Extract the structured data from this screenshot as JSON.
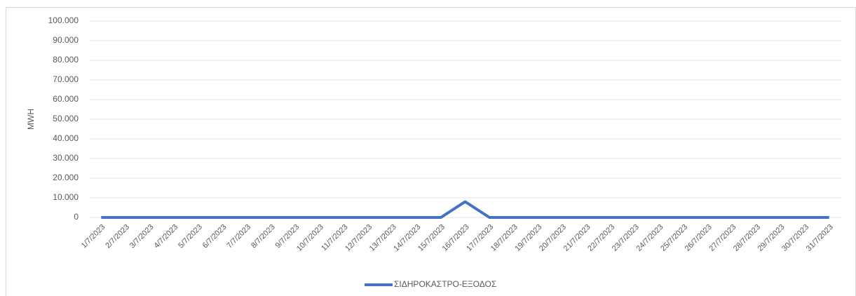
{
  "chart_data": {
    "type": "line",
    "y_label": "MWH",
    "categories": [
      "1/7/2023",
      "2/7/2023",
      "3/7/2023",
      "4/7/2023",
      "5/7/2023",
      "6/7/2023",
      "7/7/2023",
      "8/7/2023",
      "9/7/2023",
      "10/7/2023",
      "11/7/2023",
      "12/7/2023",
      "13/7/2023",
      "14/7/2023",
      "15/7/2023",
      "16/7/2023",
      "17/7/2023",
      "18/7/2023",
      "19/7/2023",
      "20/7/2023",
      "21/7/2023",
      "22/7/2023",
      "23/7/2023",
      "24/7/2023",
      "25/7/2023",
      "26/7/2023",
      "27/7/2023",
      "28/7/2023",
      "29/7/2023",
      "30/7/2023",
      "31/7/2023"
    ],
    "series": [
      {
        "name": "ΣΙΔΗΡΟΚΑΣΤΡΟ-ΕΞΟΔΟΣ",
        "color": "#4472c4",
        "values": [
          0,
          0,
          0,
          0,
          0,
          0,
          0,
          0,
          0,
          0,
          0,
          0,
          0,
          0,
          0,
          8000,
          0,
          0,
          0,
          0,
          0,
          0,
          0,
          0,
          0,
          0,
          0,
          0,
          0,
          0,
          0
        ]
      }
    ],
    "ylim": [
      0,
      100000
    ],
    "yticks": [
      0,
      {
        "value": 10000,
        "label": "10.000"
      },
      {
        "value": 20000,
        "label": "20.000"
      },
      {
        "value": 30000,
        "label": "30.000"
      },
      {
        "value": 40000,
        "label": "40.000"
      },
      {
        "value": 50000,
        "label": "50.000"
      },
      {
        "value": 60000,
        "label": "60.000"
      },
      {
        "value": 70000,
        "label": "70.000"
      },
      {
        "value": 80000,
        "label": "80.000"
      },
      {
        "value": 90000,
        "label": "90.000"
      },
      {
        "value": 100000,
        "label": "100.000"
      }
    ],
    "grid": true,
    "legend": "bottom"
  }
}
